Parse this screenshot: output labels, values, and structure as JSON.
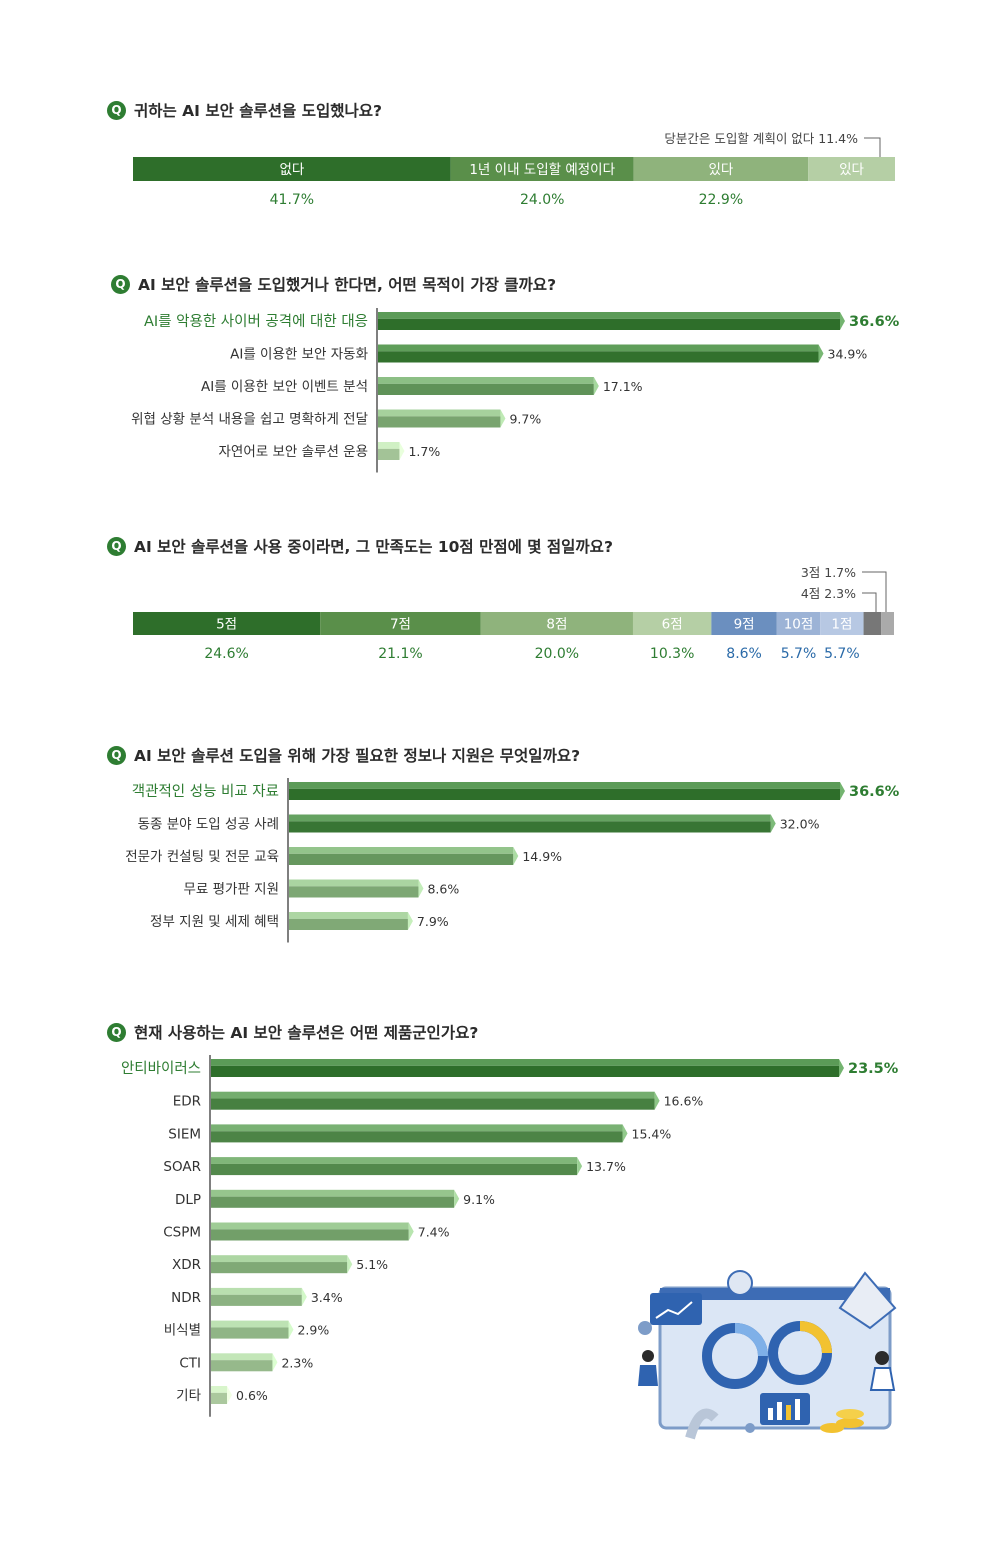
{
  "colors": {
    "dark_green": "#2e6e2a",
    "mid_green": "#5a8f4a",
    "light_green": "#8fb37c",
    "pale_green": "#b5cfa5",
    "blue": "#6b8fbf",
    "light_blue": "#9cb3d6",
    "pale_blue": "#b7c8e3",
    "gray": "#777777",
    "light_gray": "#aaaaaa",
    "green_text": "#2e7d32",
    "blue_text": "#2a6aa8"
  },
  "q_badge": "Q",
  "chart_data": [
    {
      "id": "q1",
      "type": "bar",
      "orientation": "stacked-horizontal",
      "title": "귀하는 AI 보안 솔루션을 도입했나요?",
      "categories": [
        "없다",
        "1년 이내 도입할 예정이다",
        "있다",
        "있다"
      ],
      "values": [
        41.7,
        24.0,
        22.9,
        11.4
      ],
      "value_labels": [
        "41.7%",
        "24.0%",
        "22.9%",
        ""
      ],
      "callouts": [
        "당분간은 도입할 계획이 없다 11.4%"
      ]
    },
    {
      "id": "q2",
      "type": "bar",
      "orientation": "horizontal",
      "title": "AI 보안 솔루션을 도입했거나 한다면, 어떤 목적이 가장 클까요?",
      "categories": [
        "AI를 악용한 사이버 공격에 대한 대응",
        "AI를 이용한 보안 자동화",
        "AI를 이용한 보안 이벤트 분석",
        "위협 상황 분석 내용을 쉽고 명확하게 전달",
        "자연어로 보안 솔루션 운용"
      ],
      "values": [
        36.6,
        34.9,
        17.1,
        9.7,
        1.7
      ],
      "value_labels": [
        "36.6%",
        "34.9%",
        "17.1%",
        "9.7%",
        "1.7%"
      ]
    },
    {
      "id": "q3",
      "type": "bar",
      "orientation": "stacked-horizontal",
      "title": "AI 보안 솔루션을 사용 중이라면, 그 만족도는 10점 만점에 몇 점일까요?",
      "categories": [
        "5점",
        "7점",
        "8점",
        "6점",
        "9점",
        "10점",
        "1점",
        "4점",
        "3점"
      ],
      "values": [
        24.6,
        21.1,
        20.0,
        10.3,
        8.6,
        5.7,
        5.7,
        2.3,
        1.7
      ],
      "value_labels": [
        "24.6%",
        "21.1%",
        "20.0%",
        "10.3%",
        "8.6%",
        "5.7%",
        "5.7%",
        "",
        ""
      ],
      "callouts": [
        "3점 1.7%",
        "4점 2.3%"
      ]
    },
    {
      "id": "q4",
      "type": "bar",
      "orientation": "horizontal",
      "title": "AI 보안 솔루션 도입을 위해 가장 필요한 정보나 지원은 무엇일까요?",
      "categories": [
        "객관적인 성능 비교 자료",
        "동종 분야 도입 성공 사례",
        "전문가 컨설팅 및 전문 교육",
        "무료 평가판 지원",
        "정부 지원 및 세제 혜택"
      ],
      "values": [
        36.6,
        32.0,
        14.9,
        8.6,
        7.9
      ],
      "value_labels": [
        "36.6%",
        "32.0%",
        "14.9%",
        "8.6%",
        "7.9%"
      ]
    },
    {
      "id": "q5",
      "type": "bar",
      "orientation": "horizontal",
      "title": "현재 사용하는 AI 보안 솔루션은 어떤 제품군인가요?",
      "categories": [
        "안티바이러스",
        "EDR",
        "SIEM",
        "SOAR",
        "DLP",
        "CSPM",
        "XDR",
        "NDR",
        "비식별",
        "CTI",
        "기타"
      ],
      "values": [
        23.5,
        16.6,
        15.4,
        13.7,
        9.1,
        7.4,
        5.1,
        3.4,
        2.9,
        2.3,
        0.6
      ],
      "value_labels": [
        "23.5%",
        "16.6%",
        "15.4%",
        "13.7%",
        "9.1%",
        "7.4%",
        "5.1%",
        "3.4%",
        "2.9%",
        "2.3%",
        "0.6%"
      ]
    }
  ]
}
